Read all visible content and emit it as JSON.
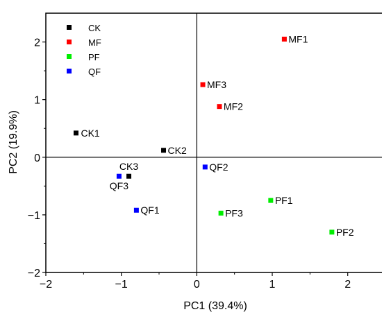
{
  "chart_data": {
    "type": "scatter",
    "title": "",
    "xlabel": "PC1 (39.4%)",
    "ylabel": "PC2 (19.9%)",
    "xlim": [
      -2,
      2.5
    ],
    "ylim": [
      -2,
      2.5
    ],
    "xticks": [
      -2,
      -1,
      0,
      1,
      2
    ],
    "yticks": [
      -2,
      -1,
      0,
      1,
      2
    ],
    "zero_lines": true,
    "grid": false,
    "legend_position": "top-left",
    "series": [
      {
        "name": "CK",
        "color": "#000000",
        "points": [
          {
            "label": "CK1",
            "x": -1.6,
            "y": 0.42
          },
          {
            "label": "CK2",
            "x": -0.44,
            "y": 0.12
          },
          {
            "label": "CK3",
            "x": -0.9,
            "y": -0.33
          }
        ]
      },
      {
        "name": "MF",
        "color": "#ff0000",
        "points": [
          {
            "label": "MF1",
            "x": 1.16,
            "y": 2.05
          },
          {
            "label": "MF3",
            "x": 0.08,
            "y": 1.26
          },
          {
            "label": "MF2",
            "x": 0.3,
            "y": 0.88
          }
        ]
      },
      {
        "name": "PF",
        "color": "#00ee00",
        "points": [
          {
            "label": "PF1",
            "x": 0.98,
            "y": -0.75
          },
          {
            "label": "PF3",
            "x": 0.32,
            "y": -0.97
          },
          {
            "label": "PF2",
            "x": 1.79,
            "y": -1.3
          }
        ]
      },
      {
        "name": "QF",
        "color": "#0000ff",
        "points": [
          {
            "label": "QF2",
            "x": 0.11,
            "y": -0.17
          },
          {
            "label": "QF3",
            "x": -1.03,
            "y": -0.33
          },
          {
            "label": "QF1",
            "x": -0.8,
            "y": -0.92
          }
        ]
      }
    ]
  }
}
